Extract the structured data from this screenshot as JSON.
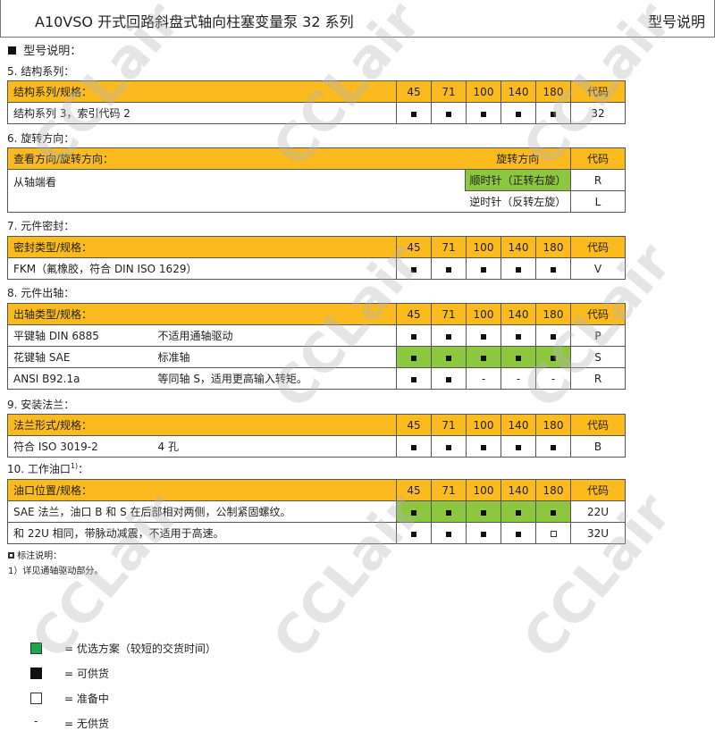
{
  "header": {
    "title": "A10VSO 开式回路斜盘式轴向柱塞变量泵  32 系列",
    "right": "型号说明"
  },
  "intro": "型号说明：",
  "colors": {
    "header_fill": "#fbbb1f",
    "preferred_fill": "#8dc63f"
  },
  "sizes": [
    "45",
    "71",
    "100",
    "140",
    "180"
  ],
  "code_label": "代码",
  "s5": {
    "title": "5.  结构系列：",
    "head": "结构系列/规格：",
    "rows": [
      {
        "a": "结构系列 3，索引代码 2",
        "b": "",
        "marks": [
          "f",
          "f",
          "f",
          "f",
          "f"
        ],
        "green": false,
        "code": "32"
      }
    ]
  },
  "s6": {
    "title": "6.  旋转方向：",
    "head": "查看方向/旋转方向：",
    "dir_head": "旋转方向",
    "view": "从轴端看",
    "rows": [
      {
        "dir": "顺时针（正转右旋）",
        "code": "R",
        "green": true
      },
      {
        "dir": "逆时针（反转左旋）",
        "code": "L",
        "green": false
      }
    ]
  },
  "s7": {
    "title": "7.  元件密封：",
    "head": "密封类型/规格：",
    "rows": [
      {
        "a": "FKM（氟橡胶，符合 DIN ISO 1629）",
        "b": "",
        "marks": [
          "f",
          "f",
          "f",
          "f",
          "f"
        ],
        "green": false,
        "code": "V"
      }
    ]
  },
  "s8": {
    "title": "8.  元件出轴：",
    "head": "出轴类型/规格：",
    "rows": [
      {
        "a": "平键轴  DIN 6885",
        "b": "不适用通轴驱动",
        "marks": [
          "f",
          "f",
          "f",
          "f",
          "f"
        ],
        "green": false,
        "code": "P"
      },
      {
        "a": "花键轴  SAE",
        "b": "标准轴",
        "marks": [
          "f",
          "f",
          "f",
          "f",
          "f"
        ],
        "green": true,
        "code": "S"
      },
      {
        "a": "ANSI B92.1a",
        "b": "等同轴 S，适用更高输入转矩。",
        "marks": [
          "f",
          "f",
          "-",
          "-",
          "-"
        ],
        "green": false,
        "code": "R"
      }
    ]
  },
  "s9": {
    "title": "9.  安装法兰：",
    "head": "法兰形式/规格：",
    "rows": [
      {
        "a": "符合 ISO 3019-2",
        "b": "4 孔",
        "marks": [
          "f",
          "f",
          "f",
          "f",
          "f"
        ],
        "green": false,
        "code": "B"
      }
    ]
  },
  "s10": {
    "title": "10. 工作油口",
    "title_sup": "1)",
    "title_end": "：",
    "head": "油口位置/规格：",
    "rows": [
      {
        "a": "SAE 法兰，油口 B 和 S 在后部相对两侧，公制紧固螺纹。",
        "b": "",
        "marks": [
          "f",
          "f",
          "f",
          "f",
          "f"
        ],
        "green": true,
        "code": "22U"
      },
      {
        "a": "和 22U 相同，带脉动减震，不适用于高速。",
        "b": "",
        "marks": [
          "f",
          "f",
          "f",
          "f",
          "o"
        ],
        "green": false,
        "code": "32U"
      }
    ]
  },
  "notes": {
    "title": "标注说明：",
    "n1": "1）详见通轴驱动部分。"
  },
  "legend": [
    {
      "sym": "=",
      "text": "= 优选方案（较短的交货时间）"
    },
    {
      "text": "= 可供货"
    },
    {
      "text": "= 准备中"
    },
    {
      "dash": "-",
      "text": "= 无供货"
    }
  ],
  "watermark": "CCLair"
}
